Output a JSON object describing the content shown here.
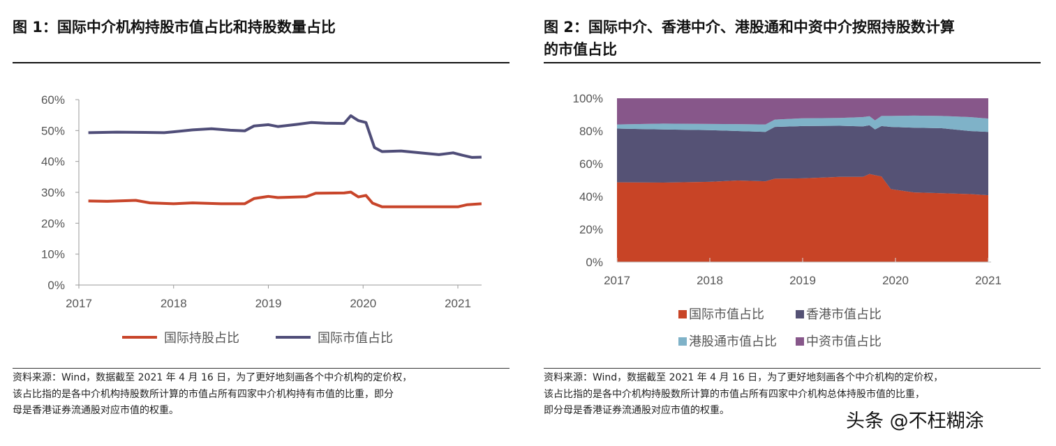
{
  "left": {
    "title": "图 1：国际中介机构持股市值占比和持股数量占比",
    "source": [
      "资料来源：Wind，数据截至 2021 年 4 月 16 日，为了更好地刻画各个中介机构的定价权，",
      "该占比指的是各中介机构持股数所计算的市值占所有四家中介机构持有市值的比重，即分",
      "母是香港证券流通股对应市值的权重。"
    ]
  },
  "right": {
    "title": [
      "图 2：国际中介、香港中介、港股通和中资中介按照持股数计算",
      "的市值占比"
    ],
    "source": [
      "资料来源：Wind，数据截至 2021 年 4 月 16 日，为了更好地刻画各个中介机构的定价权，",
      "该占比指的是各中介机构持股数所计算的市值占所有四家中介机构总体持股市值的比重，",
      "即分母是香港证券流通股对应市值的权重。"
    ]
  },
  "watermark": "头条 @不枉糊涂",
  "chart_data": [
    {
      "type": "line",
      "xlim": [
        2017,
        2021.3
      ],
      "ylim": [
        0,
        60
      ],
      "xticks": [
        "2017",
        "2018",
        "2019",
        "2020",
        "2021"
      ],
      "yticks": [
        "0%",
        "10%",
        "20%",
        "30%",
        "40%",
        "50%",
        "60%"
      ],
      "legend": "bottom",
      "series": [
        {
          "name": "国际持股占比",
          "color": "#c8452a",
          "x": [
            2017.1,
            2017.3,
            2017.6,
            2017.75,
            2018.0,
            2018.2,
            2018.5,
            2018.75,
            2018.85,
            2019.0,
            2019.1,
            2019.4,
            2019.5,
            2019.8,
            2019.87,
            2019.95,
            2020.03,
            2020.1,
            2020.2,
            2020.5,
            2020.8,
            2021.0,
            2021.1,
            2021.25
          ],
          "values": [
            27.2,
            27.1,
            27.4,
            26.6,
            26.3,
            26.6,
            26.3,
            26.3,
            28.0,
            28.7,
            28.3,
            28.6,
            29.7,
            29.8,
            30.1,
            28.5,
            29.0,
            26.5,
            25.3,
            25.3,
            25.3,
            25.3,
            26.0,
            26.3
          ]
        },
        {
          "name": "国际市值占比",
          "color": "#4f4d78",
          "x": [
            2017.1,
            2017.4,
            2017.7,
            2017.9,
            2018.0,
            2018.2,
            2018.4,
            2018.6,
            2018.75,
            2018.85,
            2019.0,
            2019.1,
            2019.3,
            2019.45,
            2019.6,
            2019.8,
            2019.87,
            2019.95,
            2020.03,
            2020.12,
            2020.2,
            2020.4,
            2020.6,
            2020.8,
            2020.95,
            2021.05,
            2021.15,
            2021.25
          ],
          "values": [
            49.3,
            49.5,
            49.4,
            49.3,
            49.6,
            50.2,
            50.6,
            50.1,
            49.9,
            51.5,
            51.9,
            51.3,
            52.0,
            52.6,
            52.4,
            52.3,
            54.8,
            53.2,
            52.6,
            44.5,
            43.2,
            43.4,
            42.8,
            42.2,
            42.8,
            42.0,
            41.3,
            41.4
          ]
        }
      ]
    },
    {
      "type": "area",
      "stacked": true,
      "xlim": [
        2017,
        2021
      ],
      "ylim": [
        0,
        100
      ],
      "xticks": [
        "2017",
        "2018",
        "2019",
        "2020",
        "2021"
      ],
      "yticks": [
        "0%",
        "20%",
        "40%",
        "60%",
        "80%",
        "100%"
      ],
      "legend": "bottom",
      "x": [
        2017.0,
        2017.5,
        2018.0,
        2018.3,
        2018.6,
        2018.7,
        2019.0,
        2019.4,
        2019.65,
        2019.72,
        2019.78,
        2019.85,
        2019.95,
        2020.2,
        2020.5,
        2020.8,
        2021.0
      ],
      "series": [
        {
          "name": "国际市值占比",
          "color": "#c84426",
          "values": [
            48.7,
            48.5,
            49.0,
            49.8,
            49.3,
            50.9,
            51.1,
            52.0,
            52.0,
            53.8,
            53.0,
            52.2,
            44.5,
            42.5,
            42.0,
            41.5,
            40.8
          ]
        },
        {
          "name": "香港市值占比",
          "color": "#555275",
          "values": [
            32.8,
            32.5,
            31.5,
            30.2,
            30.2,
            31.6,
            31.9,
            31.2,
            30.8,
            29.7,
            28.0,
            30.8,
            38.0,
            39.5,
            39.7,
            38.5,
            38.7
          ]
        },
        {
          "name": "港股通市值占比",
          "color": "#7fb2c8",
          "values": [
            2.5,
            3.5,
            3.8,
            4.2,
            4.5,
            4.5,
            4.8,
            4.8,
            5.7,
            5.5,
            5.5,
            6.2,
            6.7,
            7.4,
            7.5,
            8.5,
            8.1
          ]
        },
        {
          "name": "中资市值占比",
          "color": "#87578a",
          "values": [
            16.0,
            15.5,
            15.7,
            15.8,
            16.0,
            13.0,
            12.2,
            12.0,
            11.5,
            11.0,
            13.5,
            10.8,
            10.8,
            10.6,
            10.8,
            11.5,
            12.4
          ]
        }
      ]
    }
  ]
}
